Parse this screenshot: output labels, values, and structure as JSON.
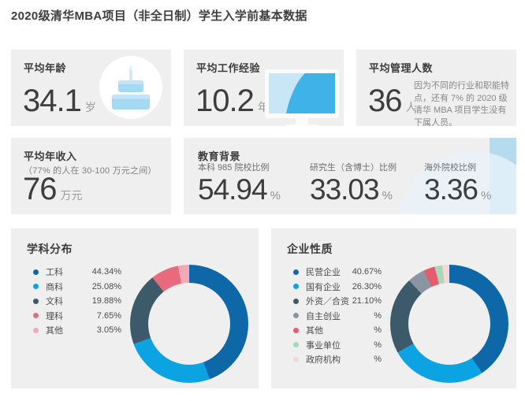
{
  "page": {
    "title": "2020级清华MBA项目（非全日制）学生入学前基本数据"
  },
  "colors": {
    "card_background": "#efefef",
    "accent_dark_blue": "#0e68a8",
    "accent_light_blue": "#0ba3e1",
    "accent_slate": "#3d5a6b",
    "icon_blue": "#a5d8f2",
    "edu_band_blue": "#b5dbee",
    "edu_circle_blue": "#e9f3fa"
  },
  "stats": {
    "age": {
      "label": "平均年龄",
      "value": "34.1",
      "unit": "岁",
      "icon": "cake-icon"
    },
    "experience": {
      "label": "平均工作经验",
      "value": "10.2",
      "unit": "年",
      "icon": "monitor-chart-icon"
    },
    "management": {
      "label": "平均管理人数",
      "value": "36",
      "unit": "人",
      "note": "因为不同的行业和职能特点，还有 7% 的 2020 级清华 MBA 项目学生没有下属人员。"
    },
    "income": {
      "label": "平均年收入",
      "sublabel": "（77% 的人在 30-100 万元之间）",
      "value": "76",
      "unit": "万元"
    },
    "education": {
      "label": "教育背景",
      "items": [
        {
          "label": "本科 985 院校比例",
          "value": "54.94",
          "unit": "%"
        },
        {
          "label": "研究生（含博士）比例",
          "value": "33.03",
          "unit": "%"
        },
        {
          "label": "海外院校比例",
          "value": "3.36",
          "unit": "%"
        }
      ]
    }
  },
  "chart_data": [
    {
      "type": "pie",
      "donut": true,
      "title": "学科分布",
      "legend_position": "left",
      "start_angle": "top",
      "direction": "clockwise",
      "slices": [
        {
          "label": "工科",
          "value": 44.34,
          "display": "44.34%",
          "color": "#0e68a8"
        },
        {
          "label": "商科",
          "value": 25.08,
          "display": "25.08%",
          "color": "#0ba3e1"
        },
        {
          "label": "文科",
          "value": 19.88,
          "display": "19.88%",
          "color": "#3d5a6b"
        },
        {
          "label": "理科",
          "value": 7.65,
          "display": "7.65%",
          "color": "#e96a7c"
        },
        {
          "label": "其他",
          "value": 3.05,
          "display": "3.05%",
          "color": "#f2abb6"
        }
      ]
    },
    {
      "type": "pie",
      "donut": true,
      "title": "企业性质",
      "legend_position": "left",
      "start_angle": "top",
      "direction": "clockwise",
      "slices": [
        {
          "label": "民营企业",
          "value": 40.67,
          "display": "40.67%",
          "color": "#0e68a8"
        },
        {
          "label": "国有企业",
          "value": 26.3,
          "display": "26.30%",
          "color": "#0ba3e1"
        },
        {
          "label": "外资／合资",
          "value": 21.1,
          "display": "21.10%",
          "color": "#3d5a6b"
        },
        {
          "label": "自主创业",
          "value": 4.8,
          "display": "%",
          "value_estimated": true,
          "color": "#8b94a1"
        },
        {
          "label": "其他",
          "value": 3.1,
          "display": "%",
          "value_estimated": true,
          "color": "#e55c6e"
        },
        {
          "label": "事业单位",
          "value": 2.1,
          "display": "%",
          "value_estimated": true,
          "color": "#a9d8b8"
        },
        {
          "label": "政府机构",
          "value": 1.93,
          "display": "%",
          "value_estimated": true,
          "color": "#f6d7d3"
        }
      ]
    }
  ]
}
